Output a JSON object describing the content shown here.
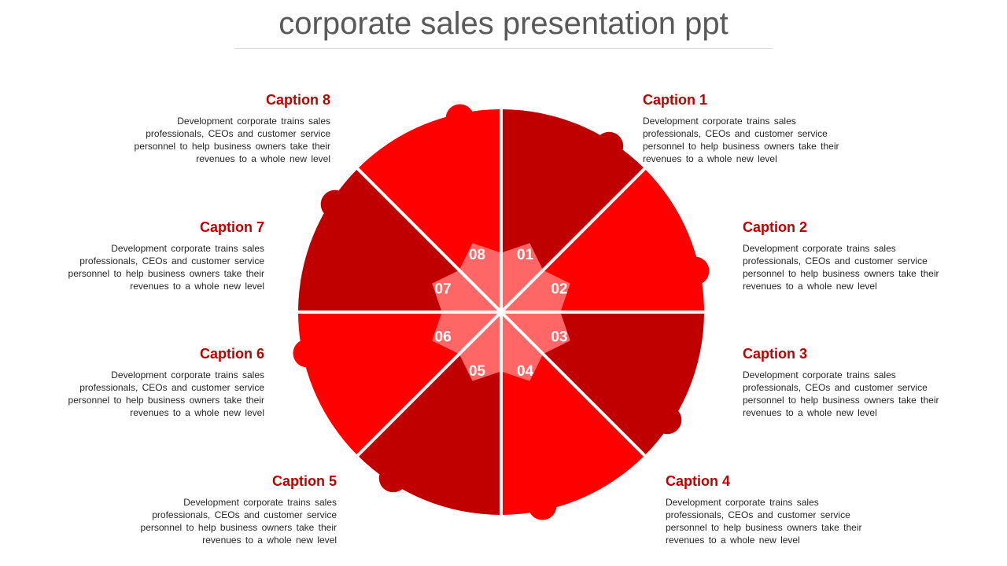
{
  "title": "corporate sales presentation ppt",
  "colors": {
    "dark_red": "#c00000",
    "bright_red": "#ff0000",
    "arrow": "#ff6666",
    "caption_heading": "#c00000",
    "title": "#595959"
  },
  "segments": [
    {
      "number": "01",
      "caption": "Caption 1",
      "text": "Development corporate trains sales professionals, CEOs and customer service personnel to help business owners take their revenues to a whole new level"
    },
    {
      "number": "02",
      "caption": "Caption 2",
      "text": "Development corporate trains sales professionals, CEOs and customer service personnel to help business owners take their revenues to a whole new level"
    },
    {
      "number": "03",
      "caption": "Caption 3",
      "text": "Development corporate trains sales professionals, CEOs and customer service personnel to help business owners take their revenues to a whole new level"
    },
    {
      "number": "04",
      "caption": "Caption 4",
      "text": "Development corporate trains sales professionals, CEOs and customer service personnel to help business owners take their revenues to a whole new level"
    },
    {
      "number": "05",
      "caption": "Caption 5",
      "text": "Development corporate trains sales professionals, CEOs and customer service personnel to help business owners take their revenues to a whole new level"
    },
    {
      "number": "06",
      "caption": "Caption 6",
      "text": "Development corporate trains sales professionals, CEOs and customer service personnel to help business owners take their revenues to a whole new level"
    },
    {
      "number": "07",
      "caption": "Caption 7",
      "text": "Development corporate trains sales professionals, CEOs and customer service personnel to help business owners take their revenues to a whole new level"
    },
    {
      "number": "08",
      "caption": "Caption 8",
      "text": "Development corporate trains sales professionals, CEOs and customer service personnel to help business owners take their revenues to a whole new level"
    }
  ]
}
